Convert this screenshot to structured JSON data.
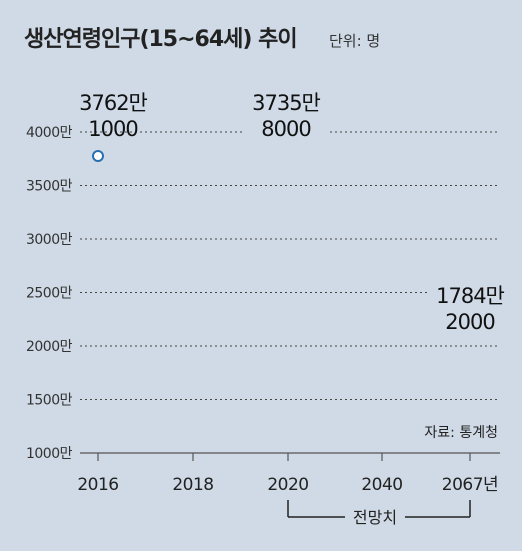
{
  "chart_data": {
    "type": "line",
    "title": "생산연령인구(15~64세) 추이",
    "unit_label": "단위: 명",
    "x": [
      "2016",
      "2018",
      "2020",
      "2040",
      "2067년"
    ],
    "yticks": [
      "4000만",
      "3500만",
      "3000만",
      "2500만",
      "2000만",
      "1500만",
      "1000만"
    ],
    "ylim": [
      1000,
      4000
    ],
    "grid": true,
    "series": [
      {
        "values": [
          3762.1,
          null,
          3735.8,
          null,
          1784.2
        ],
        "marker_color": "#2a6fb0"
      }
    ],
    "annotations": [
      {
        "x": "2016",
        "lines": [
          "3762만",
          "1000"
        ]
      },
      {
        "x": "2020",
        "lines": [
          "3735만",
          "8000"
        ]
      },
      {
        "x": "2067년",
        "lines": [
          "1784만",
          "2000"
        ]
      }
    ],
    "bracket": {
      "from": "2020",
      "to": "2067년",
      "label": "전망치"
    },
    "source": "자료: 통계청"
  }
}
